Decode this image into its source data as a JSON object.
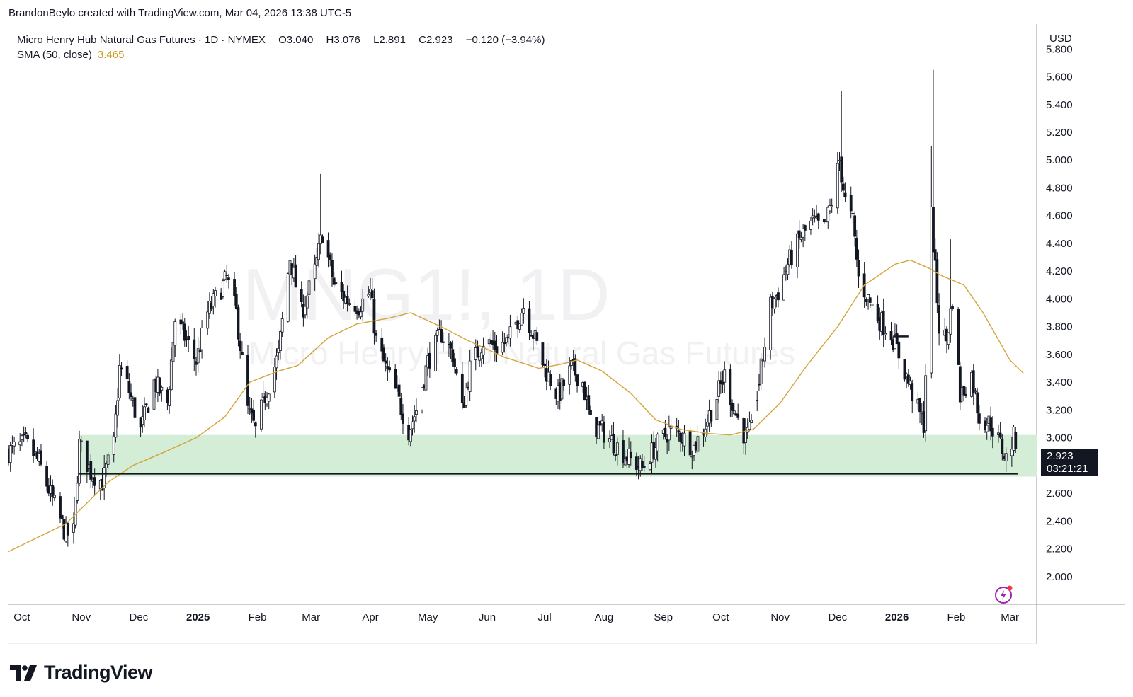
{
  "header": {
    "attribution": "BrandonBeylo created with TradingView.com, Mar 04, 2026 13:38 UTC-5"
  },
  "legend": {
    "symbol_line": "Micro Henry Hub Natural Gas Futures · 1D · NYMEX",
    "open_label": "O",
    "open": "3.040",
    "high_label": "H",
    "high": "3.076",
    "low_label": "L",
    "low": "2.891",
    "close_label": "C",
    "close": "2.923",
    "change": "−0.120 (−3.94%)",
    "sma_label": "SMA (50, close)",
    "sma_value": "3.465"
  },
  "watermark": {
    "ticker": "MNG1!, 1D",
    "name": "Micro Henry Hub Natural Gas Futures"
  },
  "price_axis": {
    "currency": "USD"
  },
  "last_price": {
    "value": "2.923",
    "countdown": "03:21:21"
  },
  "brand": {
    "name": "TradingView"
  },
  "colors": {
    "sma": "#d4a43a",
    "zone": "#d4edd6",
    "candle": "#131722",
    "axis_text": "#131722"
  },
  "chart_data": {
    "type": "candlestick",
    "ylim": [
      1.8,
      5.98
    ],
    "yticks": [
      2.0,
      2.2,
      2.4,
      2.6,
      2.8,
      3.0,
      3.2,
      3.4,
      3.6,
      3.8,
      4.0,
      4.2,
      4.4,
      4.6,
      4.8,
      5.0,
      5.2,
      5.4,
      5.6,
      5.8
    ],
    "ytick_labels": [
      "2.000",
      "2.200",
      "2.400",
      "2.600",
      "2.800",
      "3.000",
      "3.200",
      "3.400",
      "3.600",
      "3.800",
      "4.000",
      "4.200",
      "4.400",
      "4.600",
      "4.800",
      "5.000",
      "5.200",
      "5.400",
      "5.600",
      "5.800"
    ],
    "x_start": "2024-09-24",
    "x_end": "2026-03-15",
    "x_ticks": [
      {
        "date": "2024-10-01",
        "label": "Oct",
        "bold": false
      },
      {
        "date": "2024-11-01",
        "label": "Nov",
        "bold": false
      },
      {
        "date": "2024-12-01",
        "label": "Dec",
        "bold": false
      },
      {
        "date": "2025-01-01",
        "label": "2025",
        "bold": true
      },
      {
        "date": "2025-02-01",
        "label": "Feb",
        "bold": false
      },
      {
        "date": "2025-03-01",
        "label": "Mar",
        "bold": false
      },
      {
        "date": "2025-04-01",
        "label": "Apr",
        "bold": false
      },
      {
        "date": "2025-05-01",
        "label": "May",
        "bold": false
      },
      {
        "date": "2025-06-01",
        "label": "Jun",
        "bold": false
      },
      {
        "date": "2025-07-01",
        "label": "Jul",
        "bold": false
      },
      {
        "date": "2025-08-01",
        "label": "Aug",
        "bold": false
      },
      {
        "date": "2025-09-01",
        "label": "Sep",
        "bold": false
      },
      {
        "date": "2025-10-01",
        "label": "Oct",
        "bold": false
      },
      {
        "date": "2025-11-01",
        "label": "Nov",
        "bold": false
      },
      {
        "date": "2025-12-01",
        "label": "Dec",
        "bold": false
      },
      {
        "date": "2026-01-01",
        "label": "2026",
        "bold": true
      },
      {
        "date": "2026-02-01",
        "label": "Feb",
        "bold": false
      },
      {
        "date": "2026-03-01",
        "label": "Mar",
        "bold": false
      }
    ],
    "close_path": [
      [
        "2024-09-24",
        2.9
      ],
      [
        "2024-10-03",
        2.96
      ],
      [
        "2024-10-10",
        2.82
      ],
      [
        "2024-10-17",
        2.55
      ],
      [
        "2024-10-24",
        2.3
      ],
      [
        "2024-10-28",
        2.32
      ],
      [
        "2024-10-31",
        2.95
      ],
      [
        "2024-11-06",
        2.75
      ],
      [
        "2024-11-12",
        2.68
      ],
      [
        "2024-11-18",
        2.95
      ],
      [
        "2024-11-21",
        3.5
      ],
      [
        "2024-11-25",
        3.38
      ],
      [
        "2024-12-02",
        3.05
      ],
      [
        "2024-12-09",
        3.4
      ],
      [
        "2024-12-16",
        3.25
      ],
      [
        "2024-12-20",
        3.85
      ],
      [
        "2024-12-26",
        3.7
      ],
      [
        "2024-12-31",
        3.55
      ],
      [
        "2025-01-06",
        3.9
      ],
      [
        "2025-01-10",
        4.0
      ],
      [
        "2025-01-16",
        4.15
      ],
      [
        "2025-01-21",
        3.9
      ],
      [
        "2025-01-27",
        3.2
      ],
      [
        "2025-01-31",
        3.05
      ],
      [
        "2025-02-05",
        3.3
      ],
      [
        "2025-02-12",
        3.6
      ],
      [
        "2025-02-18",
        4.3
      ],
      [
        "2025-02-24",
        3.9
      ],
      [
        "2025-03-03",
        4.2
      ],
      [
        "2025-03-07",
        4.48
      ],
      [
        "2025-03-13",
        4.1
      ],
      [
        "2025-03-19",
        4.0
      ],
      [
        "2025-03-26",
        3.95
      ],
      [
        "2025-04-01",
        4.05
      ],
      [
        "2025-04-04",
        3.7
      ],
      [
        "2025-04-09",
        3.5
      ],
      [
        "2025-04-15",
        3.3
      ],
      [
        "2025-04-21",
        3.05
      ],
      [
        "2025-04-25",
        3.2
      ],
      [
        "2025-05-01",
        3.55
      ],
      [
        "2025-05-08",
        3.75
      ],
      [
        "2025-05-14",
        3.6
      ],
      [
        "2025-05-19",
        3.2
      ],
      [
        "2025-05-23",
        3.5
      ],
      [
        "2025-05-30",
        3.7
      ],
      [
        "2025-06-06",
        3.65
      ],
      [
        "2025-06-12",
        3.7
      ],
      [
        "2025-06-20",
        3.95
      ],
      [
        "2025-06-25",
        3.75
      ],
      [
        "2025-07-01",
        3.5
      ],
      [
        "2025-07-08",
        3.3
      ],
      [
        "2025-07-15",
        3.5
      ],
      [
        "2025-07-21",
        3.4
      ],
      [
        "2025-07-25",
        3.1
      ],
      [
        "2025-07-31",
        3.05
      ],
      [
        "2025-08-07",
        2.95
      ],
      [
        "2025-08-14",
        2.85
      ],
      [
        "2025-08-21",
        2.78
      ],
      [
        "2025-08-27",
        2.92
      ],
      [
        "2025-09-04",
        3.05
      ],
      [
        "2025-09-10",
        3.02
      ],
      [
        "2025-09-17",
        2.93
      ],
      [
        "2025-09-23",
        3.1
      ],
      [
        "2025-09-29",
        3.3
      ],
      [
        "2025-10-03",
        3.45
      ],
      [
        "2025-10-08",
        3.2
      ],
      [
        "2025-10-14",
        3.0
      ],
      [
        "2025-10-17",
        3.05
      ],
      [
        "2025-10-21",
        3.4
      ],
      [
        "2025-10-27",
        3.95
      ],
      [
        "2025-10-31",
        4.05
      ],
      [
        "2025-11-05",
        4.25
      ],
      [
        "2025-11-12",
        4.45
      ],
      [
        "2025-11-18",
        4.55
      ],
      [
        "2025-11-24",
        4.5
      ],
      [
        "2025-11-28",
        4.7
      ],
      [
        "2025-12-02",
        5.0
      ],
      [
        "2025-12-05",
        4.7
      ],
      [
        "2025-12-09",
        4.55
      ],
      [
        "2025-12-12",
        4.15
      ],
      [
        "2025-12-17",
        4.0
      ],
      [
        "2025-12-23",
        3.85
      ],
      [
        "2025-12-29",
        3.75
      ],
      [
        "2026-01-02",
        3.6
      ],
      [
        "2026-01-07",
        3.4
      ],
      [
        "2026-01-12",
        3.2
      ],
      [
        "2026-01-15",
        3.1
      ],
      [
        "2026-01-19",
        4.6
      ],
      [
        "2026-01-23",
        3.8
      ],
      [
        "2026-01-27",
        3.7
      ],
      [
        "2026-01-30",
        4.0
      ],
      [
        "2026-02-03",
        3.3
      ],
      [
        "2026-02-09",
        3.45
      ],
      [
        "2026-02-13",
        3.15
      ],
      [
        "2026-02-19",
        3.1
      ],
      [
        "2026-02-24",
        2.95
      ],
      [
        "2026-02-27",
        2.85
      ],
      [
        "2026-03-03",
        3.0
      ],
      [
        "2026-03-04",
        2.923
      ]
    ],
    "spikes": [
      {
        "date": "2025-03-06",
        "high": 4.9
      },
      {
        "date": "2025-12-03",
        "high": 5.5
      },
      {
        "date": "2026-01-20",
        "high": 5.65
      },
      {
        "date": "2026-01-19",
        "high": 5.1
      },
      {
        "date": "2026-01-29",
        "high": 4.43
      }
    ],
    "sma": {
      "name": "SMA (50, close)",
      "points": [
        [
          "2024-09-24",
          2.18
        ],
        [
          "2024-10-24",
          2.38
        ],
        [
          "2024-11-15",
          2.68
        ],
        [
          "2024-11-28",
          2.8
        ],
        [
          "2024-12-15",
          2.9
        ],
        [
          "2024-12-31",
          3.0
        ],
        [
          "2025-01-15",
          3.15
        ],
        [
          "2025-01-28",
          3.4
        ],
        [
          "2025-02-12",
          3.48
        ],
        [
          "2025-02-22",
          3.52
        ],
        [
          "2025-03-10",
          3.72
        ],
        [
          "2025-03-25",
          3.82
        ],
        [
          "2025-04-10",
          3.86
        ],
        [
          "2025-04-22",
          3.9
        ],
        [
          "2025-05-08",
          3.8
        ],
        [
          "2025-05-22",
          3.7
        ],
        [
          "2025-06-10",
          3.58
        ],
        [
          "2025-06-28",
          3.5
        ],
        [
          "2025-07-10",
          3.53
        ],
        [
          "2025-07-18",
          3.56
        ],
        [
          "2025-07-31",
          3.48
        ],
        [
          "2025-08-15",
          3.32
        ],
        [
          "2025-08-28",
          3.13
        ],
        [
          "2025-09-10",
          3.06
        ],
        [
          "2025-09-25",
          3.03
        ],
        [
          "2025-10-06",
          3.02
        ],
        [
          "2025-10-18",
          3.06
        ],
        [
          "2025-11-01",
          3.25
        ],
        [
          "2025-11-15",
          3.52
        ],
        [
          "2025-12-01",
          3.8
        ],
        [
          "2025-12-15",
          4.1
        ],
        [
          "2025-12-31",
          4.25
        ],
        [
          "2026-01-08",
          4.28
        ],
        [
          "2026-01-18",
          4.22
        ],
        [
          "2026-01-24",
          4.17
        ],
        [
          "2026-02-05",
          4.1
        ],
        [
          "2026-02-15",
          3.9
        ],
        [
          "2026-03-01",
          3.56
        ],
        [
          "2026-03-08",
          3.465
        ]
      ]
    },
    "support_zone": {
      "low": 2.72,
      "high": 3.02,
      "from": "2024-10-31",
      "to": "2026-03-15"
    },
    "support_line": {
      "value": 2.74,
      "from": "2024-10-31",
      "to": "2026-03-05"
    },
    "hline_segment": {
      "value": 3.73,
      "from": "2025-12-30",
      "to": "2026-01-07"
    }
  }
}
